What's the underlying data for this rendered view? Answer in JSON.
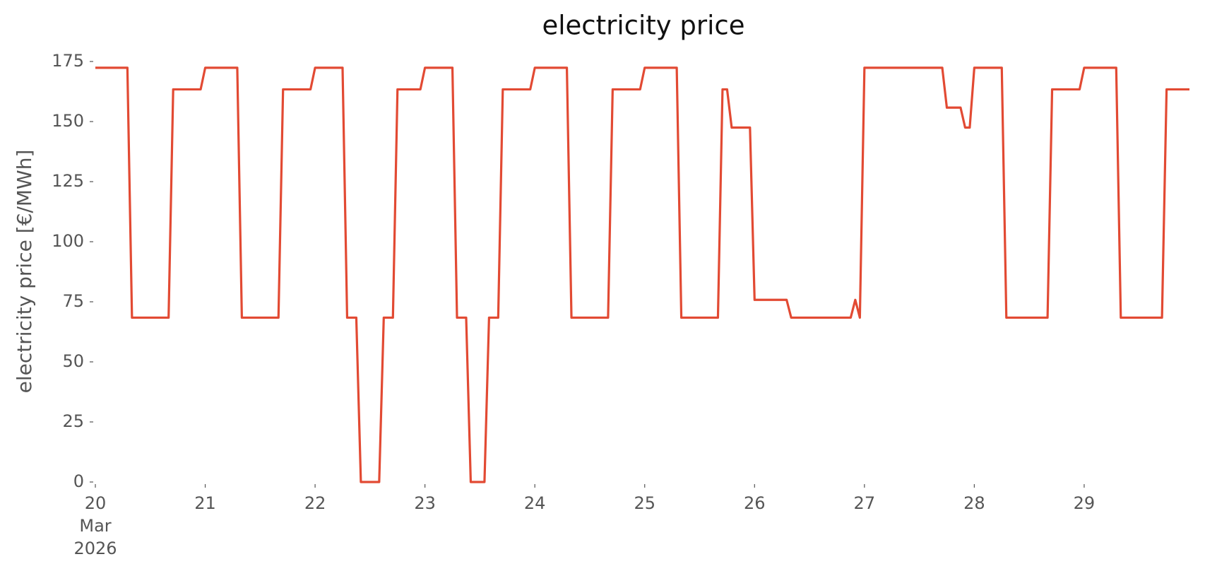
{
  "chart_data": {
    "type": "line",
    "title": "electricity price",
    "ylabel": "electricity price [€/MWh]",
    "x": [
      0,
      7,
      8,
      16,
      17,
      23,
      24,
      31,
      32,
      40,
      41,
      47,
      48,
      54,
      55,
      57,
      58,
      62,
      63,
      65,
      66,
      71,
      72,
      78,
      79,
      81,
      82,
      85,
      86,
      88,
      89,
      95,
      96,
      103,
      104,
      112,
      113,
      119,
      120,
      127,
      128,
      136,
      137,
      138,
      139,
      143,
      144,
      151,
      152,
      165,
      166,
      167,
      168,
      185,
      186,
      189,
      190,
      191,
      192,
      198,
      199,
      208,
      209,
      215,
      216,
      223,
      224,
      233,
      234,
      239
    ],
    "series": [
      {
        "name": "electricity price",
        "color": "#e24a33",
        "values": [
          172.4,
          172.4,
          68.4,
          68.4,
          163.4,
          163.4,
          172.4,
          172.4,
          68.4,
          68.4,
          163.4,
          163.4,
          172.4,
          172.4,
          68.4,
          68.4,
          0,
          0,
          68.4,
          68.4,
          163.4,
          163.4,
          172.4,
          172.4,
          68.4,
          68.4,
          0,
          0,
          68.4,
          68.4,
          163.4,
          163.4,
          172.4,
          172.4,
          68.4,
          68.4,
          163.4,
          163.4,
          172.4,
          172.4,
          68.4,
          68.4,
          163.4,
          163.4,
          147.5,
          147.5,
          75.8,
          75.8,
          68.4,
          68.4,
          75.8,
          68.4,
          172.4,
          172.4,
          155.8,
          155.8,
          147.5,
          147.5,
          172.4,
          172.4,
          68.4,
          68.4,
          163.4,
          163.4,
          172.4,
          172.4,
          68.4,
          68.4,
          163.4,
          163.4
        ]
      }
    ],
    "xlim": [
      0,
      239
    ],
    "xticks": [
      {
        "value": 0,
        "label": "20\nMar\n2026"
      },
      {
        "value": 24,
        "label": "21"
      },
      {
        "value": 48,
        "label": "22"
      },
      {
        "value": 72,
        "label": "23"
      },
      {
        "value": 96,
        "label": "24"
      },
      {
        "value": 120,
        "label": "25"
      },
      {
        "value": 144,
        "label": "26"
      },
      {
        "value": 168,
        "label": "27"
      },
      {
        "value": 192,
        "label": "28"
      },
      {
        "value": 216,
        "label": "29"
      }
    ],
    "ylim": [
      0,
      175
    ],
    "yticks": [
      0,
      25,
      50,
      75,
      100,
      125,
      150,
      175
    ],
    "grid": false
  }
}
